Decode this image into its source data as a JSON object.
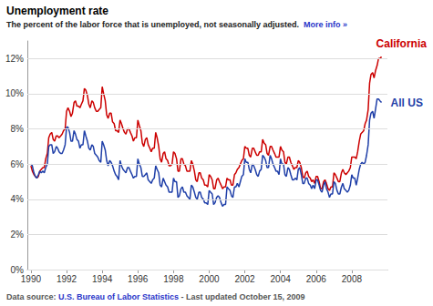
{
  "chart_data": {
    "type": "line",
    "title": "Unemployment rate",
    "subtitle": "The percent of the labor force that is unemployed, not seasonally adjusted.",
    "link": "More info »",
    "source_label": "Data source:",
    "source_link": "U.S. Bureau of Labor Statistics",
    "updated": "- Last updated October 15, 2009",
    "grid": true,
    "xlim": [
      1989.8,
      2010
    ],
    "xticks": [
      1990,
      1992,
      1994,
      1996,
      1998,
      2000,
      2002,
      2004,
      2006,
      2008
    ],
    "ylim": [
      0,
      13
    ],
    "yticks": [
      {
        "value": 0,
        "label": "0%"
      },
      {
        "value": 2,
        "label": "2%"
      },
      {
        "value": 4,
        "label": "4%"
      },
      {
        "value": 6,
        "label": "6%"
      },
      {
        "value": 8,
        "label": "8%"
      },
      {
        "value": 10,
        "label": "10%"
      },
      {
        "value": 12,
        "label": "12%"
      }
    ],
    "x": [
      1990,
      1990.08,
      1990.17,
      1990.25,
      1990.33,
      1990.42,
      1990.5,
      1990.58,
      1990.67,
      1990.75,
      1990.83,
      1990.92,
      1991,
      1991.08,
      1991.17,
      1991.25,
      1991.33,
      1991.42,
      1991.5,
      1991.58,
      1991.67,
      1991.75,
      1991.83,
      1991.92,
      1992,
      1992.08,
      1992.17,
      1992.25,
      1992.33,
      1992.42,
      1992.5,
      1992.58,
      1992.67,
      1992.75,
      1992.83,
      1992.92,
      1993,
      1993.08,
      1993.17,
      1993.25,
      1993.33,
      1993.42,
      1993.5,
      1993.58,
      1993.67,
      1993.75,
      1993.83,
      1993.92,
      1994,
      1994.08,
      1994.17,
      1994.25,
      1994.33,
      1994.42,
      1994.5,
      1994.58,
      1994.67,
      1994.75,
      1994.83,
      1994.92,
      1995,
      1995.08,
      1995.17,
      1995.25,
      1995.33,
      1995.42,
      1995.5,
      1995.58,
      1995.67,
      1995.75,
      1995.83,
      1995.92,
      1996,
      1996.08,
      1996.17,
      1996.25,
      1996.33,
      1996.42,
      1996.5,
      1996.58,
      1996.67,
      1996.75,
      1996.83,
      1996.92,
      1997,
      1997.08,
      1997.17,
      1997.25,
      1997.33,
      1997.42,
      1997.5,
      1997.58,
      1997.67,
      1997.75,
      1997.83,
      1997.92,
      1998,
      1998.08,
      1998.17,
      1998.25,
      1998.33,
      1998.42,
      1998.5,
      1998.58,
      1998.67,
      1998.75,
      1998.83,
      1998.92,
      1999,
      1999.08,
      1999.17,
      1999.25,
      1999.33,
      1999.42,
      1999.5,
      1999.58,
      1999.67,
      1999.75,
      1999.83,
      1999.92,
      2000,
      2000.08,
      2000.17,
      2000.25,
      2000.33,
      2000.42,
      2000.5,
      2000.58,
      2000.67,
      2000.75,
      2000.83,
      2000.92,
      2001,
      2001.08,
      2001.17,
      2001.25,
      2001.33,
      2001.42,
      2001.5,
      2001.58,
      2001.67,
      2001.75,
      2001.83,
      2001.92,
      2002,
      2002.08,
      2002.17,
      2002.25,
      2002.33,
      2002.42,
      2002.5,
      2002.58,
      2002.67,
      2002.75,
      2002.83,
      2002.92,
      2003,
      2003.08,
      2003.17,
      2003.25,
      2003.33,
      2003.42,
      2003.5,
      2003.58,
      2003.67,
      2003.75,
      2003.83,
      2003.92,
      2004,
      2004.08,
      2004.17,
      2004.25,
      2004.33,
      2004.42,
      2004.5,
      2004.58,
      2004.67,
      2004.75,
      2004.83,
      2004.92,
      2005,
      2005.08,
      2005.17,
      2005.25,
      2005.33,
      2005.42,
      2005.5,
      2005.58,
      2005.67,
      2005.75,
      2005.83,
      2005.92,
      2006,
      2006.08,
      2006.17,
      2006.25,
      2006.33,
      2006.42,
      2006.5,
      2006.58,
      2006.67,
      2006.75,
      2006.83,
      2006.92,
      2007,
      2007.08,
      2007.17,
      2007.25,
      2007.33,
      2007.42,
      2007.5,
      2007.58,
      2007.67,
      2007.75,
      2007.83,
      2007.92,
      2008,
      2008.08,
      2008.17,
      2008.25,
      2008.33,
      2008.42,
      2008.5,
      2008.58,
      2008.67,
      2008.75,
      2008.83,
      2008.92,
      2009,
      2009.08,
      2009.17,
      2009.25,
      2009.33,
      2009.42,
      2009.5,
      2009.58,
      2009.67
    ],
    "series": [
      {
        "name": "California",
        "color": "#cc0000",
        "values": [
          5.9,
          5.6,
          5.4,
          5.3,
          5.2,
          5.3,
          5.6,
          5.7,
          5.8,
          5.8,
          6.3,
          6.6,
          7.5,
          7.7,
          7.8,
          7.4,
          7.3,
          7.6,
          7.6,
          7.5,
          7.6,
          7.7,
          7.9,
          8.0,
          9.0,
          9.2,
          9.0,
          8.7,
          8.9,
          9.5,
          9.6,
          9.3,
          9.3,
          9.2,
          9.4,
          9.6,
          10.3,
          10.2,
          9.9,
          9.4,
          9.2,
          9.6,
          9.5,
          9.2,
          9.0,
          9.0,
          9.1,
          9.2,
          10.4,
          10.0,
          9.6,
          8.8,
          8.6,
          8.9,
          8.9,
          8.4,
          8.3,
          7.9,
          7.9,
          7.8,
          8.5,
          8.3,
          8.0,
          7.8,
          7.7,
          8.0,
          8.0,
          7.8,
          7.6,
          7.3,
          7.5,
          7.5,
          8.5,
          8.2,
          7.9,
          7.2,
          7.0,
          7.4,
          7.5,
          7.1,
          6.9,
          6.7,
          6.9,
          6.9,
          7.8,
          7.5,
          7.0,
          6.3,
          6.1,
          6.6,
          6.7,
          6.3,
          6.2,
          5.9,
          5.9,
          6.0,
          6.7,
          6.6,
          6.3,
          5.6,
          5.6,
          6.3,
          6.3,
          6.0,
          5.9,
          5.6,
          5.6,
          5.6,
          6.2,
          6.0,
          5.6,
          5.1,
          5.0,
          5.5,
          5.5,
          5.2,
          5.1,
          4.8,
          4.8,
          4.7,
          5.4,
          5.3,
          5.1,
          4.6,
          4.6,
          5.1,
          5.2,
          5.0,
          4.8,
          4.6,
          4.7,
          4.7,
          5.2,
          5.1,
          5.1,
          4.8,
          4.8,
          5.4,
          5.5,
          5.7,
          5.8,
          6.0,
          6.2,
          6.3,
          7.0,
          6.9,
          6.9,
          6.5,
          6.4,
          6.9,
          6.9,
          6.7,
          6.5,
          6.5,
          6.7,
          6.7,
          7.4,
          7.2,
          7.1,
          6.6,
          6.5,
          7.0,
          7.0,
          6.8,
          6.6,
          6.4,
          6.4,
          6.4,
          7.0,
          6.8,
          6.7,
          6.1,
          6.0,
          6.4,
          6.4,
          6.1,
          5.9,
          5.7,
          5.8,
          5.8,
          6.2,
          6.1,
          5.8,
          5.3,
          5.2,
          5.5,
          5.6,
          5.3,
          5.2,
          5.0,
          5.1,
          4.9,
          5.3,
          5.3,
          5.0,
          4.6,
          4.6,
          5.0,
          5.1,
          4.9,
          4.6,
          4.5,
          4.7,
          4.7,
          5.5,
          5.4,
          5.2,
          5.0,
          5.0,
          5.5,
          5.7,
          5.5,
          5.4,
          5.5,
          5.6,
          5.8,
          6.4,
          6.4,
          6.4,
          6.3,
          6.7,
          7.3,
          7.7,
          7.8,
          7.9,
          8.3,
          8.5,
          9.1,
          10.6,
          11.1,
          11.2,
          10.9,
          11.3,
          11.6,
          12.0,
          12.0,
          12.1
        ]
      },
      {
        "name": "All US",
        "color": "#1f3fa8",
        "values": [
          6.0,
          5.9,
          5.5,
          5.3,
          5.2,
          5.4,
          5.6,
          5.5,
          5.6,
          5.5,
          5.8,
          6.0,
          7.0,
          7.1,
          7.1,
          6.6,
          6.7,
          7.0,
          6.9,
          6.7,
          6.6,
          6.6,
          6.8,
          7.1,
          8.1,
          8.1,
          7.8,
          7.3,
          7.3,
          7.9,
          7.7,
          7.4,
          7.3,
          6.9,
          7.1,
          7.1,
          7.9,
          7.6,
          7.3,
          6.9,
          6.8,
          7.1,
          7.0,
          6.6,
          6.5,
          6.4,
          6.2,
          6.1,
          7.3,
          7.1,
          6.8,
          6.2,
          5.9,
          6.2,
          6.1,
          5.9,
          5.6,
          5.4,
          5.3,
          5.1,
          6.2,
          5.9,
          5.7,
          5.6,
          5.5,
          5.8,
          5.8,
          5.6,
          5.4,
          5.2,
          5.3,
          5.3,
          6.3,
          6.0,
          5.8,
          5.3,
          5.3,
          5.4,
          5.5,
          5.1,
          5.0,
          4.9,
          5.1,
          5.2,
          5.9,
          5.7,
          5.5,
          4.8,
          4.7,
          5.2,
          5.0,
          4.8,
          4.7,
          4.4,
          4.4,
          4.4,
          5.2,
          5.0,
          5.0,
          4.1,
          4.2,
          4.6,
          4.7,
          4.4,
          4.4,
          4.2,
          4.1,
          4.0,
          4.8,
          4.7,
          4.4,
          4.1,
          4.0,
          4.4,
          4.4,
          4.1,
          4.0,
          3.8,
          3.8,
          3.7,
          4.5,
          4.4,
          4.3,
          3.7,
          3.8,
          4.1,
          4.2,
          4.1,
          3.8,
          3.6,
          3.7,
          3.7,
          4.7,
          4.6,
          4.5,
          4.2,
          4.1,
          4.7,
          4.7,
          4.9,
          4.7,
          5.0,
          5.3,
          5.4,
          6.3,
          6.1,
          6.1,
          5.7,
          5.5,
          6.0,
          5.9,
          5.7,
          5.4,
          5.3,
          5.6,
          5.7,
          6.5,
          6.4,
          6.2,
          5.8,
          5.8,
          6.5,
          6.3,
          6.0,
          5.8,
          5.6,
          5.6,
          5.4,
          6.3,
          6.0,
          6.0,
          5.4,
          5.3,
          5.8,
          5.7,
          5.4,
          5.1,
          5.1,
          5.2,
          5.1,
          5.7,
          5.8,
          5.4,
          4.9,
          4.9,
          5.2,
          5.2,
          4.9,
          4.8,
          4.6,
          4.8,
          4.6,
          5.1,
          5.1,
          4.8,
          4.5,
          4.4,
          4.8,
          5.0,
          4.6,
          4.4,
          4.1,
          4.3,
          4.3,
          5.0,
          4.9,
          4.5,
          4.3,
          4.3,
          4.7,
          4.9,
          4.6,
          4.5,
          4.4,
          4.5,
          4.8,
          5.4,
          5.2,
          5.2,
          4.8,
          5.2,
          5.7,
          6.0,
          6.1,
          6.0,
          6.1,
          6.5,
          7.1,
          8.5,
          8.9,
          9.0,
          8.6,
          9.1,
          9.7,
          9.7,
          9.6,
          9.5
        ]
      }
    ]
  }
}
